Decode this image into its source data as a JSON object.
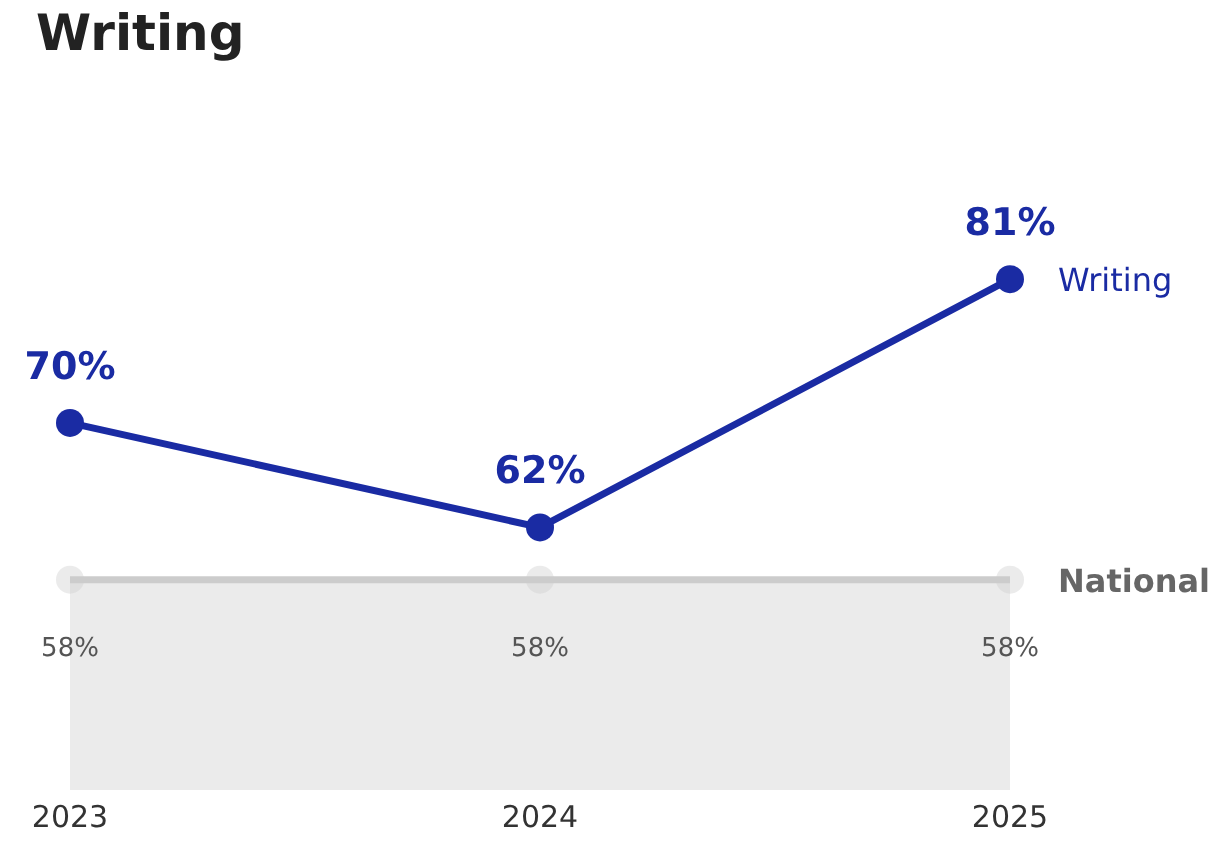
{
  "chart_data": {
    "type": "line",
    "title": "Writing",
    "categories": [
      "2023",
      "2024",
      "2025"
    ],
    "tick_labels": "x",
    "marker": "circle",
    "line_style": "solid",
    "grid": false,
    "legend": false,
    "series": [
      {
        "name": "Writing",
        "color": "#1a2ba3",
        "values": [
          70,
          62,
          81
        ],
        "value_labels": [
          "70%",
          "62%",
          "81%"
        ]
      },
      {
        "name": "National",
        "type": "area",
        "color": "#cccccc",
        "values": [
          58,
          58,
          58
        ],
        "value_labels": [
          "58%",
          "58%",
          "58%"
        ]
      }
    ]
  }
}
